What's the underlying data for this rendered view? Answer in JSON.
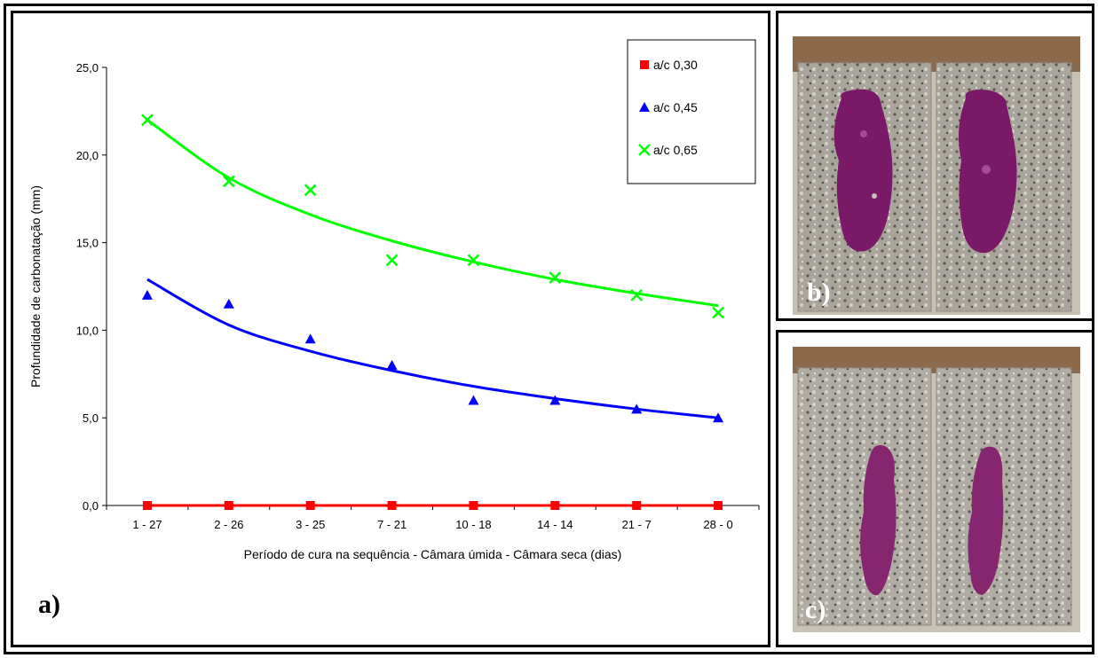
{
  "panels": {
    "a_label": "a)",
    "b_label": "b)",
    "c_label": "c)"
  },
  "colors": {
    "ac030": "#ff0000",
    "ac045": "#0000ff",
    "ac065": "#00ff00"
  },
  "chart_data": {
    "type": "line",
    "title": "",
    "xlabel": "Período de cura na sequência - Câmara úmida - Câmara seca (dias)",
    "ylabel": "Profundidade de carbonatação (mm)",
    "categories": [
      "1 - 27",
      "2 - 26",
      "3 - 25",
      "7 - 21",
      "10 - 18",
      "14 - 14",
      "21 - 7",
      "28 - 0"
    ],
    "y_ticks": [
      "0,0",
      "5,0",
      "10,0",
      "15,0",
      "20,0",
      "25,0"
    ],
    "ylim": [
      0,
      25
    ],
    "grid": false,
    "legend_position": "top-right",
    "series": [
      {
        "name": "a/c 0,30",
        "marker": "square",
        "color": "#ff0000",
        "values": [
          0,
          0,
          0,
          0,
          0,
          0,
          0,
          0
        ],
        "trend": [
          0,
          0,
          0,
          0,
          0,
          0,
          0,
          0
        ]
      },
      {
        "name": "a/c 0,45",
        "marker": "triangle",
        "color": "#0000ff",
        "values": [
          12.0,
          11.5,
          9.5,
          8.0,
          6.0,
          6.0,
          5.5,
          5.0
        ],
        "trend": [
          12.9,
          10.3,
          8.8,
          7.7,
          6.8,
          6.1,
          5.5,
          5.0
        ]
      },
      {
        "name": "a/c 0,65",
        "marker": "x",
        "color": "#00ff00",
        "values": [
          22.0,
          18.5,
          18.0,
          14.0,
          14.0,
          13.0,
          12.0,
          11.0
        ],
        "trend": [
          22.0,
          18.7,
          16.6,
          15.1,
          13.9,
          12.9,
          12.1,
          11.4
        ]
      }
    ]
  }
}
